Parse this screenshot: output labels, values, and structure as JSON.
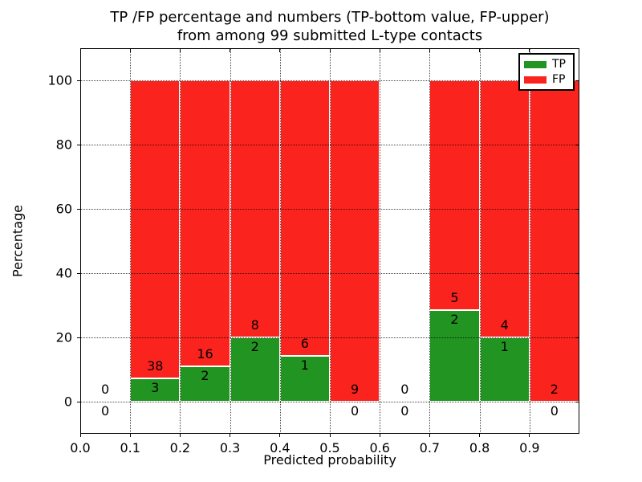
{
  "figure": {
    "title_line1": "TP /FP percentage and numbers (TP-bottom value, FP-upper)",
    "title_line2": "from among 99 submitted L-type contacts",
    "xlabel": "Predicted probability",
    "ylabel": "Percentage"
  },
  "legend": {
    "items": [
      {
        "label": "TP",
        "color": "#219421"
      },
      {
        "label": "FP",
        "color": "#fa231e"
      }
    ]
  },
  "chart_data": {
    "type": "bar",
    "stacked": true,
    "title": "TP /FP percentage and numbers (TP-bottom value, FP-upper) from among 99 submitted L-type contacts",
    "xlabel": "Predicted probability",
    "ylabel": "Percentage",
    "total_contacts": 99,
    "xlim": [
      0.0,
      1.0
    ],
    "ylim": [
      -10,
      110
    ],
    "grid": true,
    "grid_style": "dotted",
    "legend_position": "upper right",
    "bar_edge_color": "#ffffff",
    "xticks": [
      "0.0",
      "0.1",
      "0.2",
      "0.3",
      "0.4",
      "0.5",
      "0.6",
      "0.7",
      "0.8",
      "0.9"
    ],
    "yticks": [
      0,
      20,
      40,
      60,
      80,
      100
    ],
    "bin_edges": [
      0.0,
      0.1,
      0.2,
      0.3,
      0.4,
      0.5,
      0.6,
      0.7,
      0.8,
      0.9,
      1.0
    ],
    "series": [
      {
        "name": "TP",
        "color": "#219421",
        "counts": [
          0,
          3,
          2,
          2,
          1,
          0,
          0,
          2,
          1,
          0
        ]
      },
      {
        "name": "FP",
        "color": "#fa231e",
        "counts": [
          0,
          38,
          16,
          8,
          6,
          9,
          0,
          5,
          4,
          2
        ]
      }
    ],
    "bins": [
      {
        "range": "0.0-0.1",
        "tp": 0,
        "fp": 0,
        "tp_pct": 0,
        "fp_pct": 0
      },
      {
        "range": "0.1-0.2",
        "tp": 3,
        "fp": 38,
        "tp_pct": 7.32,
        "fp_pct": 92.68
      },
      {
        "range": "0.2-0.3",
        "tp": 2,
        "fp": 16,
        "tp_pct": 11.11,
        "fp_pct": 88.89
      },
      {
        "range": "0.3-0.4",
        "tp": 2,
        "fp": 8,
        "tp_pct": 20.0,
        "fp_pct": 80.0
      },
      {
        "range": "0.4-0.5",
        "tp": 1,
        "fp": 6,
        "tp_pct": 14.29,
        "fp_pct": 85.71
      },
      {
        "range": "0.5-0.6",
        "tp": 0,
        "fp": 9,
        "tp_pct": 0,
        "fp_pct": 100.0
      },
      {
        "range": "0.6-0.7",
        "tp": 0,
        "fp": 0,
        "tp_pct": 0,
        "fp_pct": 0
      },
      {
        "range": "0.7-0.8",
        "tp": 2,
        "fp": 5,
        "tp_pct": 28.57,
        "fp_pct": 71.43
      },
      {
        "range": "0.8-0.9",
        "tp": 1,
        "fp": 4,
        "tp_pct": 20.0,
        "fp_pct": 80.0
      },
      {
        "range": "0.9-1.0",
        "tp": 0,
        "fp": 2,
        "tp_pct": 0,
        "fp_pct": 100.0
      }
    ]
  }
}
